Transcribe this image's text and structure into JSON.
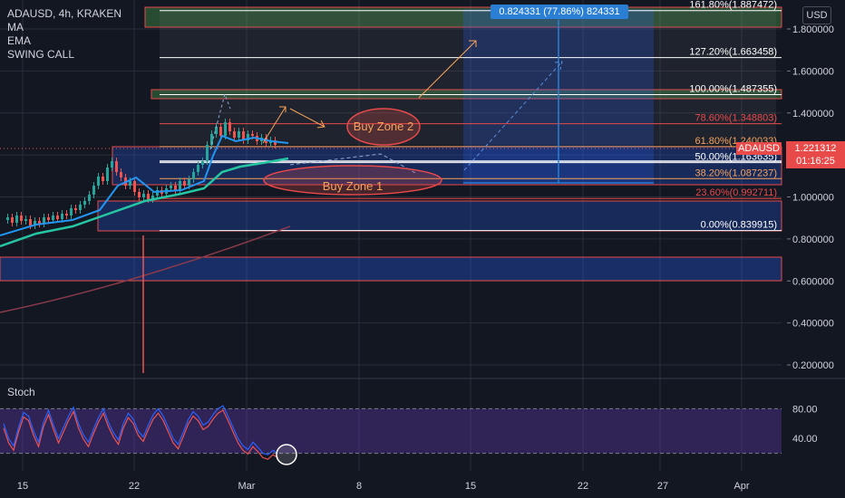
{
  "legend": {
    "symbol_line": "ADAUSD, 4h, KRAKEN",
    "indicators": [
      "MA",
      "EMA",
      "SWING CALL"
    ]
  },
  "currency_button": "USD",
  "stoch_title": "Stoch",
  "measure_label": "0.824331 (77.86%) 824331",
  "last_price": {
    "symbol": "ADAUSD",
    "price": "1.221312",
    "countdown": "01:16:25"
  },
  "colors": {
    "background": "#131722",
    "grid": "#2a2e39",
    "candle_up": "#26a69a",
    "candle_down": "#ef5350",
    "ema": "#2196f3",
    "ma_green": "#26c6a4",
    "slow_ma": "#8a3a4a",
    "zone_red": "#e84a4a",
    "fib_orange": "#f7a35c",
    "measure_blue": "#2a7fd4",
    "stoch_k": "#2962ff",
    "stoch_d": "#ef5350",
    "stoch_band": "#3a2a5a"
  },
  "chart_data": {
    "type": "candlestick",
    "y_axis": {
      "ticks": [
        "1.800000",
        "1.600000",
        "1.400000",
        "1.200000",
        "1.000000",
        "0.800000",
        "0.600000",
        "0.400000",
        "0.200000"
      ],
      "range": [
        0.12,
        1.88
      ]
    },
    "x_axis": {
      "ticks": [
        "15",
        "22",
        "Mar",
        "8",
        "15",
        "22",
        "27",
        "Apr"
      ]
    },
    "fib_levels": [
      {
        "label": "161.80%(1.887472)",
        "value": 1.887472
      },
      {
        "label": "127.20%(1.663458)",
        "value": 1.663458
      },
      {
        "label": "100.00%(1.487355)",
        "value": 1.487355
      },
      {
        "label": "78.60%(1.348803)",
        "value": 1.348803
      },
      {
        "label": "61.80%(1.240033)",
        "value": 1.240033
      },
      {
        "label": "50.00%(1.163635)",
        "value": 1.163635
      },
      {
        "label": "38.20%(1.087237)",
        "value": 1.087237
      },
      {
        "label": "23.60%(0.992711)",
        "value": 0.992711
      },
      {
        "label": "0.00%(0.839915)",
        "value": 0.839915
      }
    ],
    "annotations": [
      "Buy Zone 2",
      "Buy Zone 1"
    ],
    "stoch": {
      "levels": [
        "80.00",
        "40.00"
      ],
      "range": [
        0,
        100
      ]
    }
  }
}
